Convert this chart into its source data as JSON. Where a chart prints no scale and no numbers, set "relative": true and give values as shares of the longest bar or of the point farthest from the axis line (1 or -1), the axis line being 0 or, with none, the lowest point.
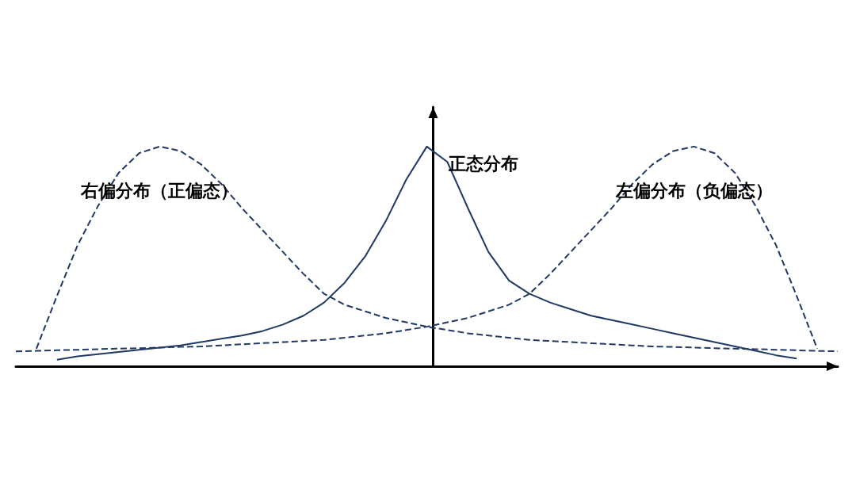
{
  "chart_data": {
    "type": "line",
    "relative": true,
    "categories": [
      null,
      null,
      null,
      null,
      null,
      null,
      null,
      null,
      null,
      null,
      null,
      null,
      null,
      null,
      null,
      null,
      null,
      null,
      null,
      null,
      null,
      null,
      null,
      null,
      null,
      null,
      null,
      null,
      null,
      null,
      null,
      null,
      null,
      null,
      null,
      null,
      null,
      null,
      null,
      null,
      null
    ],
    "marker": "none",
    "legend": false,
    "grid": false,
    "series": [
      {
        "name": "右偏分布（正偏态）",
        "color": "#203864",
        "line_style": "dashed",
        "values": [
          null,
          0.08,
          0.32,
          0.55,
          0.73,
          0.88,
          0.97,
          1.0,
          0.98,
          0.92,
          0.83,
          0.72,
          0.62,
          0.52,
          0.42,
          0.33,
          0.28,
          0.25,
          0.22,
          0.2,
          0.18,
          0.165,
          0.15,
          0.14,
          0.13,
          0.12,
          0.115,
          0.11,
          0.105,
          0.1,
          0.095,
          0.09,
          0.088,
          0.085,
          0.082,
          0.08,
          0.078,
          0.075,
          0.073,
          0.07,
          0.068
        ]
      },
      {
        "name": "正态分布",
        "color": "#203864",
        "line_style": "solid",
        "values": [
          null,
          null,
          0.03,
          0.045,
          0.055,
          0.065,
          0.075,
          0.085,
          0.095,
          0.11,
          0.125,
          0.14,
          0.16,
          0.19,
          0.23,
          0.29,
          0.38,
          0.5,
          0.66,
          0.85,
          1.0,
          0.93,
          0.72,
          0.52,
          0.39,
          0.33,
          0.29,
          0.26,
          0.23,
          0.21,
          0.19,
          0.17,
          0.15,
          0.13,
          0.11,
          0.09,
          0.07,
          0.05,
          0.035,
          null,
          null
        ]
      },
      {
        "name": "左偏分布（负偏态）",
        "color": "#203864",
        "line_style": "dashed",
        "values": [
          0.068,
          0.07,
          0.073,
          0.075,
          0.078,
          0.08,
          0.082,
          0.085,
          0.088,
          0.09,
          0.095,
          0.1,
          0.105,
          0.11,
          0.115,
          0.12,
          0.13,
          0.14,
          0.15,
          0.165,
          0.18,
          0.2,
          0.22,
          0.25,
          0.28,
          0.33,
          0.42,
          0.52,
          0.62,
          0.72,
          0.83,
          0.92,
          0.98,
          1.0,
          0.97,
          0.88,
          0.73,
          0.55,
          0.32,
          0.08,
          null
        ]
      }
    ]
  }
}
